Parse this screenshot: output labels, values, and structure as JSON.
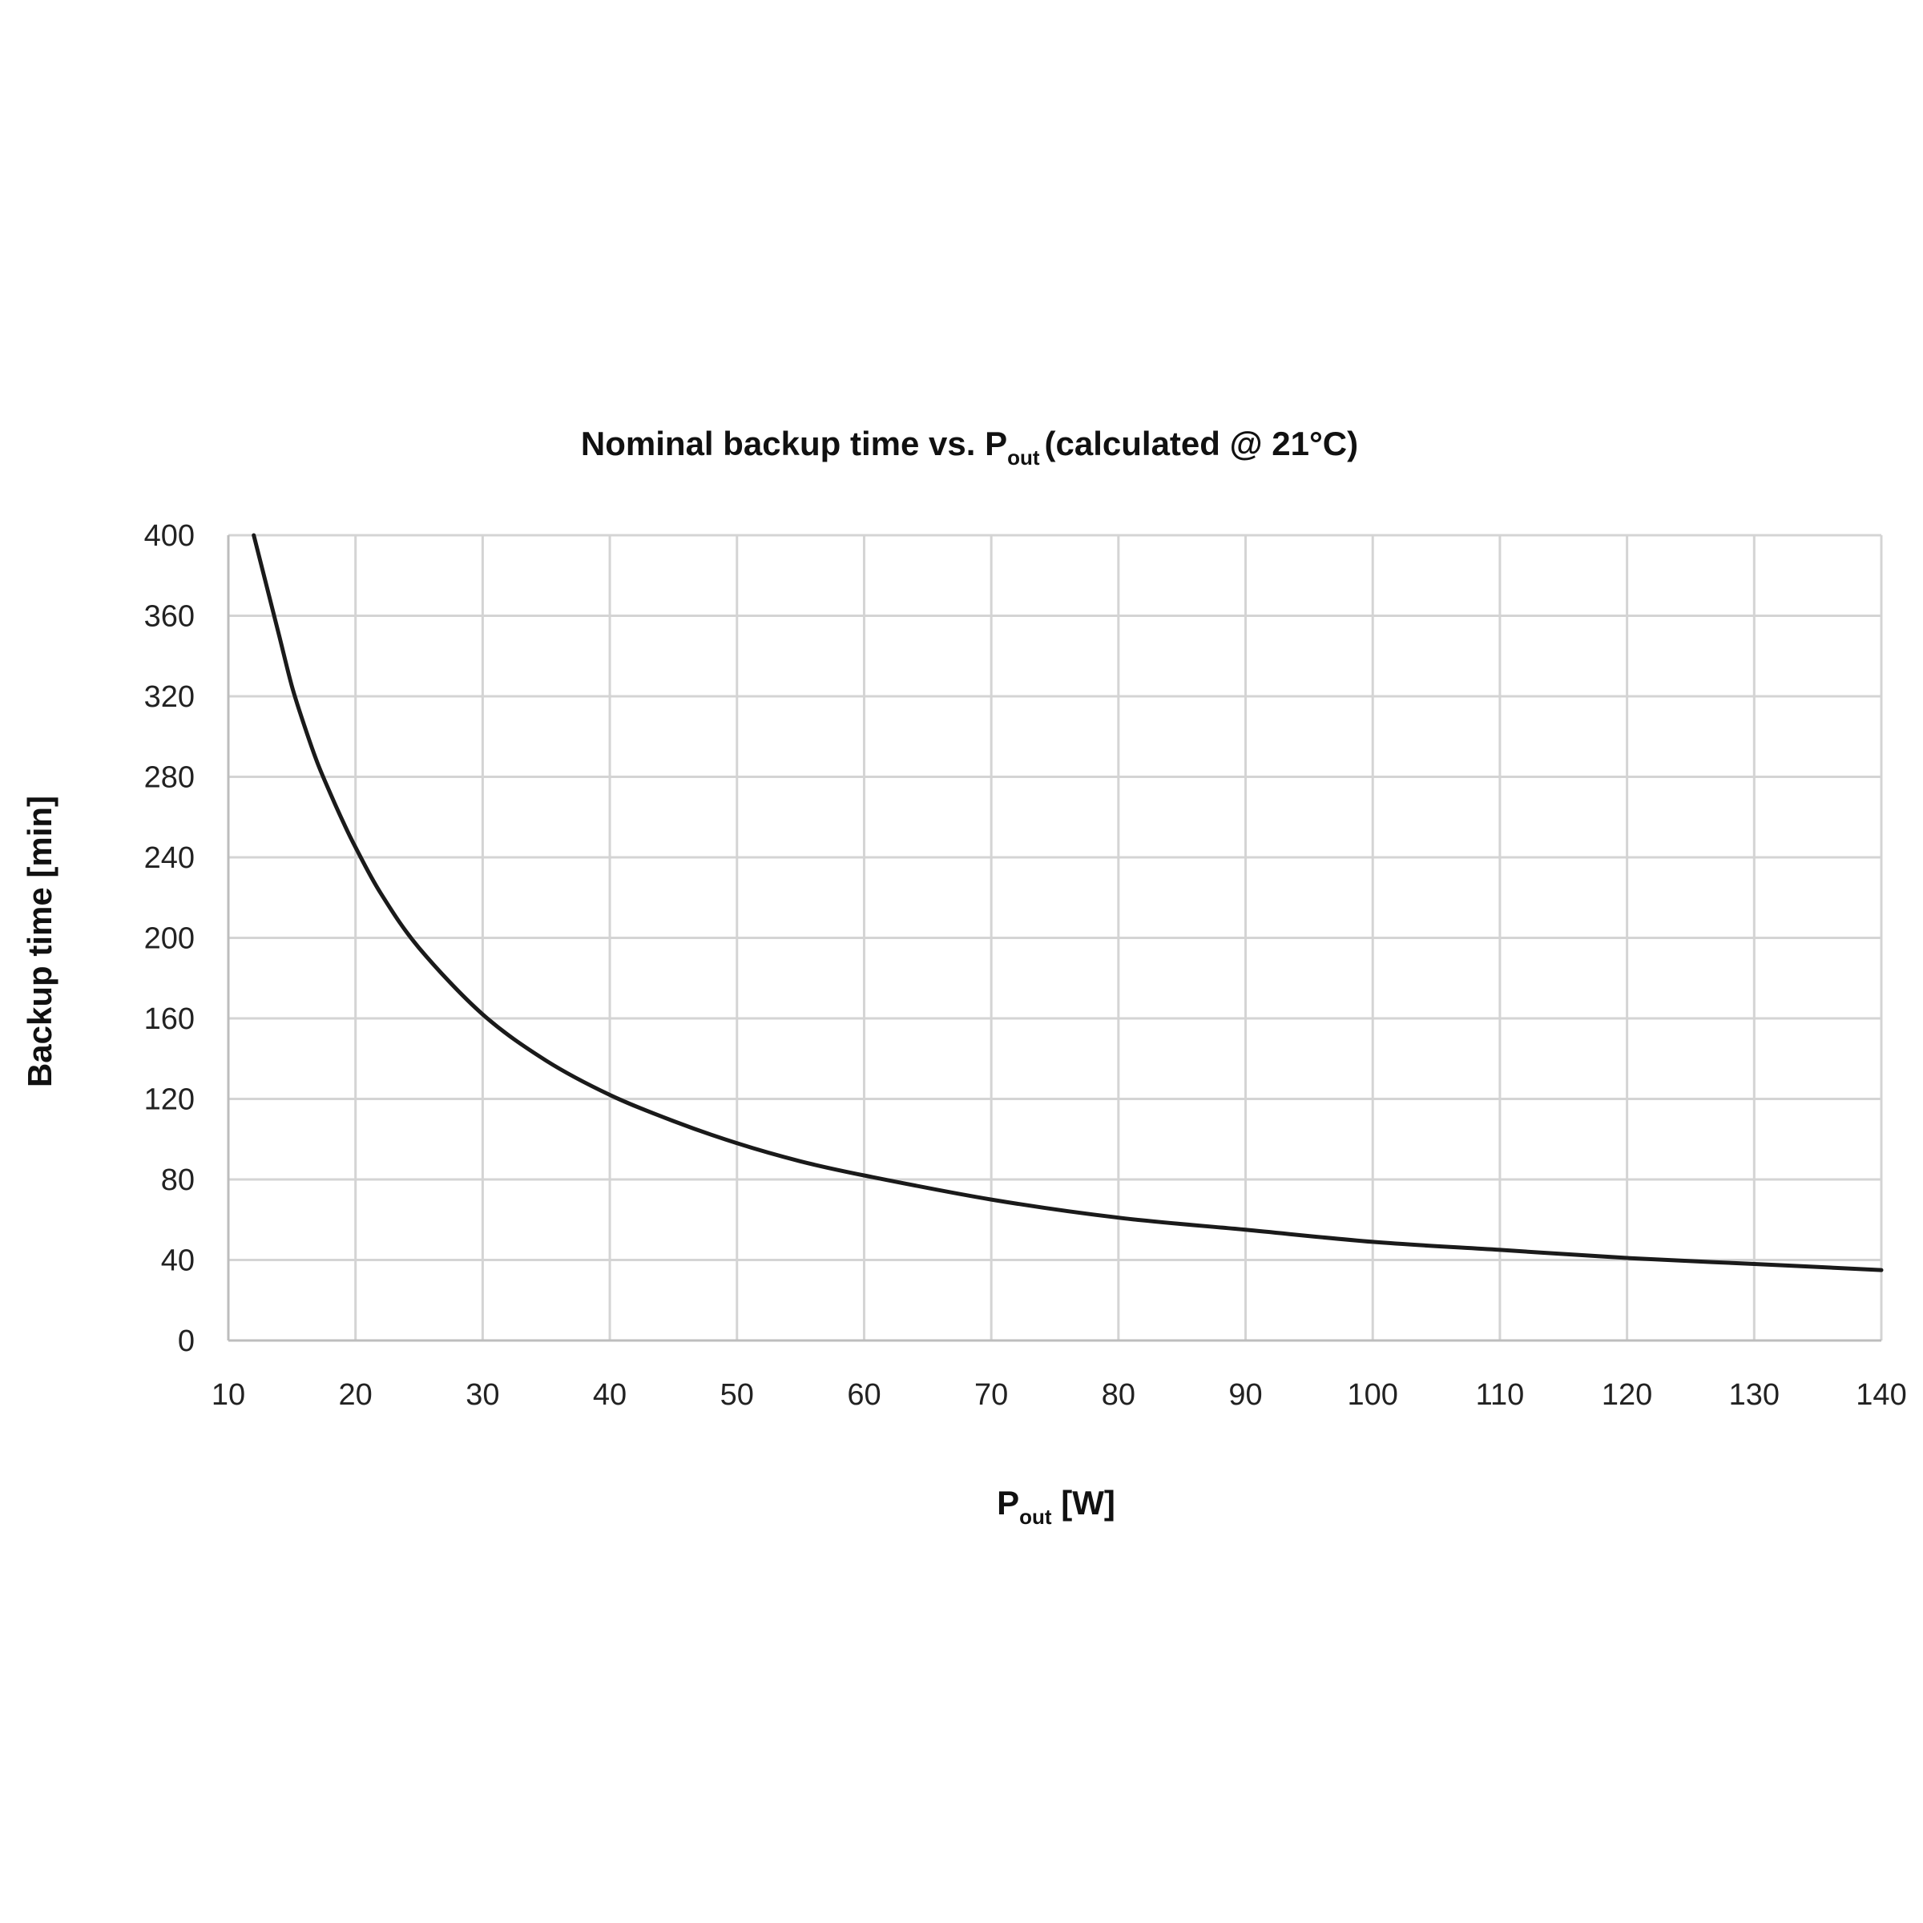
{
  "chart_data": {
    "type": "line",
    "title": {
      "prefix": "Nominal backup time vs. P",
      "subscript": "out",
      "suffix": "(calculated @ 21°C)"
    },
    "xlabel": {
      "prefix": "P",
      "subscript": "out",
      "suffix": " [W]"
    },
    "ylabel": "Backup time [min]",
    "xlim": [
      10,
      140
    ],
    "ylim": [
      0,
      400
    ],
    "x_ticks": [
      "10",
      "20",
      "30",
      "40",
      "50",
      "60",
      "70",
      "80",
      "90",
      "100",
      "110",
      "120",
      "130",
      "140"
    ],
    "y_ticks": [
      "0",
      "40",
      "80",
      "120",
      "160",
      "200",
      "240",
      "280",
      "320",
      "360",
      "400"
    ],
    "grid": true,
    "legend": "none",
    "colors": {
      "line": "#1a1a1a",
      "grid": "#d4d4d4"
    },
    "series": [
      {
        "x": [
          12,
          13,
          14,
          15,
          16,
          17,
          18,
          19,
          20,
          22,
          25,
          30,
          35,
          40,
          45,
          50,
          55,
          60,
          70,
          80,
          90,
          100,
          110,
          120,
          130,
          140
        ],
        "y": [
          400,
          375,
          350,
          325,
          305,
          287,
          272,
          258,
          245,
          222,
          195,
          162,
          139,
          122,
          109,
          98,
          89,
          82,
          70,
          61,
          55,
          49,
          45,
          41,
          38,
          35
        ]
      }
    ]
  }
}
